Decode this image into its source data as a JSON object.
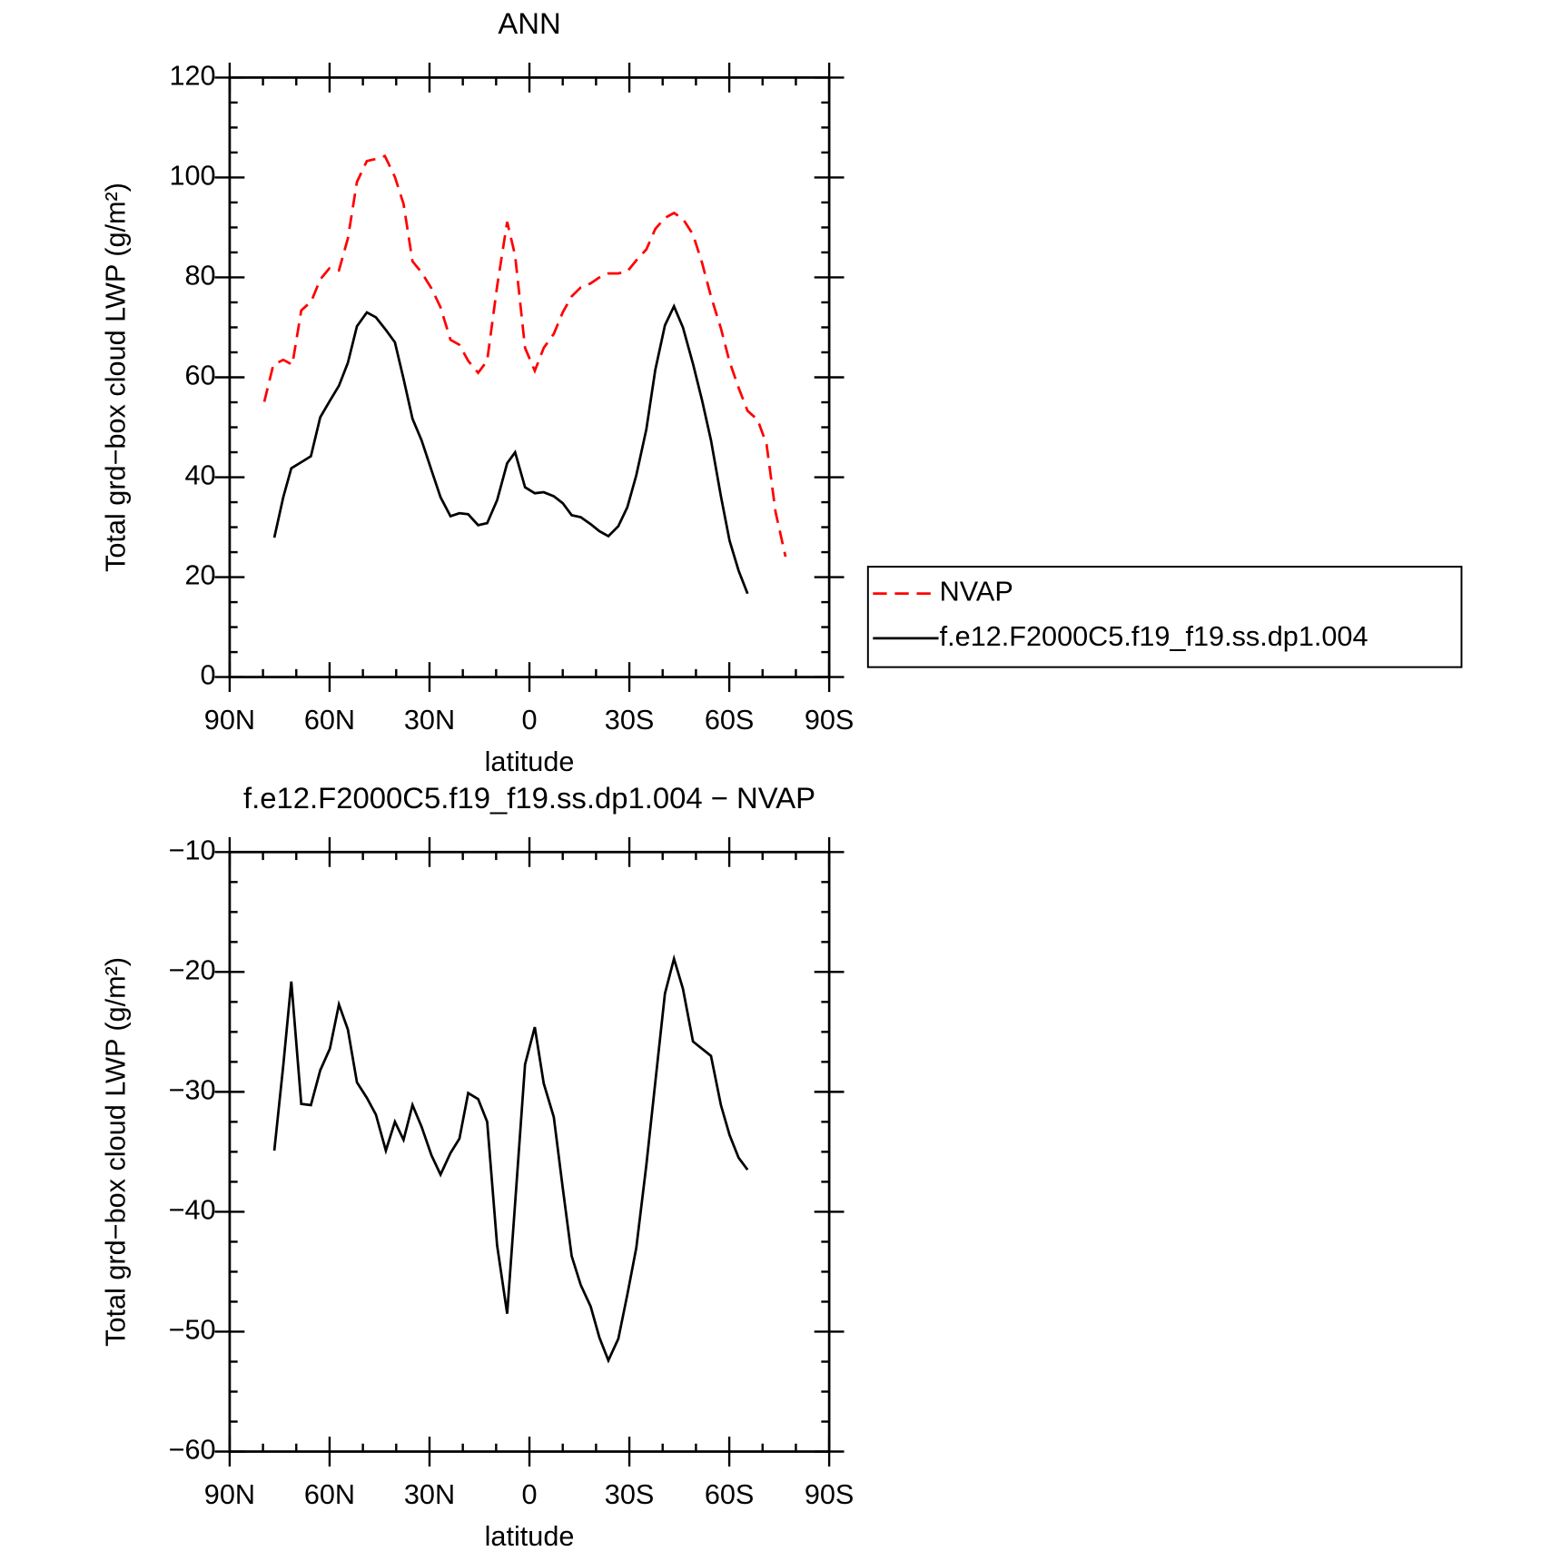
{
  "chart_data": [
    {
      "type": "line",
      "title": "ANN",
      "xlabel": "latitude",
      "ylabel": "Total grd−box cloud LWP (g/m²)",
      "xlim": [
        90,
        -90
      ],
      "xticks": [
        {
          "value": 90,
          "label": "90N"
        },
        {
          "value": 60,
          "label": "60N"
        },
        {
          "value": 30,
          "label": "30N"
        },
        0,
        {
          "value": -30,
          "label": "30S"
        },
        {
          "value": -60,
          "label": "60S"
        },
        {
          "value": -90,
          "label": "90S"
        }
      ],
      "ylim": [
        0,
        120
      ],
      "yticks": [
        0,
        20,
        40,
        60,
        80,
        100,
        120
      ],
      "legend": "right",
      "series": [
        {
          "name": "NVAP",
          "color": "#ff0000",
          "linestyle": "dashed",
          "x": [
            79.6,
            76.9,
            73.9,
            71.2,
            68.5,
            65.5,
            62.8,
            60.1,
            57.2,
            54.5,
            51.8,
            48.8,
            46.1,
            43.4,
            40.4,
            37.8,
            35.1,
            32.4,
            29.4,
            26.7,
            23.7,
            21.0,
            18.4,
            15.4,
            12.7,
            9.7,
            6.7,
            4.3,
            1.3,
            -1.6,
            -4.3,
            -7.3,
            -10.0,
            -12.7,
            -15.4,
            -18.4,
            -21.0,
            -23.7,
            -26.7,
            -29.4,
            -32.1,
            -35.1,
            -37.8,
            -40.7,
            -43.4,
            -46.1,
            -49.1,
            -51.8,
            -54.5,
            -57.5,
            -60.1,
            -62.8,
            -65.5,
            -68.5,
            -71.2,
            -73.9,
            -76.9
          ],
          "values": [
            55.1,
            62.5,
            63.5,
            62.5,
            73.4,
            75.2,
            79.6,
            81.8,
            81.4,
            87.8,
            99.1,
            103.3,
            103.7,
            104.3,
            100.1,
            94.7,
            83.2,
            81.0,
            77.8,
            74.0,
            67.5,
            66.5,
            63.3,
            60.9,
            63.3,
            78.2,
            91.1,
            84.4,
            65.9,
            61.3,
            65.9,
            68.7,
            73.0,
            76.2,
            78.0,
            78.8,
            80.0,
            80.8,
            80.8,
            81.2,
            83.4,
            85.6,
            89.7,
            91.9,
            92.9,
            91.7,
            88.6,
            83.0,
            76.2,
            69.8,
            63.1,
            57.9,
            53.3,
            51.5,
            46.6,
            33.0,
            24.1
          ]
        },
        {
          "name": "f.e12.F2000C5.f19_f19.ss.dp1.004",
          "color": "#000000",
          "linestyle": "solid",
          "x": [
            76.6,
            73.9,
            71.5,
            68.5,
            65.6,
            62.8,
            59.9,
            57.2,
            54.5,
            51.8,
            48.8,
            46.1,
            43.1,
            40.4,
            37.8,
            35.1,
            32.4,
            29.4,
            26.7,
            23.7,
            21.0,
            18.4,
            15.4,
            12.7,
            9.7,
            6.7,
            4.3,
            1.3,
            -1.6,
            -4.3,
            -7.3,
            -10.0,
            -12.7,
            -15.4,
            -18.4,
            -21.0,
            -23.7,
            -26.7,
            -29.4,
            -32.1,
            -35.1,
            -37.8,
            -40.7,
            -43.4,
            -46.1,
            -49.1,
            -51.8,
            -54.5,
            -57.5,
            -60.1,
            -62.8,
            -65.5
          ],
          "values": [
            27.9,
            36.0,
            41.8,
            43.0,
            44.2,
            52.0,
            55.3,
            58.3,
            62.9,
            70.2,
            73.0,
            72.0,
            69.5,
            67.0,
            59.7,
            51.7,
            47.4,
            41.4,
            36.0,
            32.2,
            32.8,
            32.6,
            30.4,
            30.8,
            35.4,
            42.8,
            45.0,
            38.0,
            36.8,
            37.0,
            36.2,
            34.8,
            32.4,
            32.0,
            30.6,
            29.2,
            28.2,
            30.2,
            34.0,
            40.4,
            49.6,
            61.5,
            70.4,
            74.2,
            70.0,
            62.7,
            55.5,
            47.4,
            36.2,
            27.3,
            21.3,
            16.7
          ]
        }
      ]
    },
    {
      "type": "line",
      "title": "f.e12.F2000C5.f19_f19.ss.dp1.004 − NVAP",
      "xlabel": "latitude",
      "ylabel": "Total grd−box cloud LWP (g/m²)",
      "xlim": [
        90,
        -90
      ],
      "xticks": [
        {
          "value": 90,
          "label": "90N"
        },
        {
          "value": 60,
          "label": "60N"
        },
        {
          "value": 30,
          "label": "30N"
        },
        0,
        {
          "value": -30,
          "label": "30S"
        },
        {
          "value": -60,
          "label": "60S"
        },
        {
          "value": -90,
          "label": "90S"
        }
      ],
      "ylim": [
        -60,
        -10
      ],
      "yticks": [
        {
          "value": -60,
          "label": "−60"
        },
        {
          "value": -50,
          "label": "−50"
        },
        {
          "value": -40,
          "label": "−40"
        },
        {
          "value": -30,
          "label": "−30"
        },
        {
          "value": -20,
          "label": "−20"
        },
        {
          "value": -10,
          "label": "−10"
        }
      ],
      "series": [
        {
          "color": "#000000",
          "linestyle": "solid",
          "x": [
            76.6,
            73.9,
            71.5,
            68.5,
            65.6,
            62.8,
            59.9,
            57.2,
            54.5,
            51.8,
            48.8,
            46.1,
            43.1,
            40.4,
            37.8,
            35.1,
            32.4,
            29.4,
            26.7,
            23.7,
            21.0,
            18.4,
            15.4,
            12.7,
            9.7,
            6.7,
            4.3,
            1.3,
            -1.6,
            -4.3,
            -7.3,
            -10.0,
            -12.7,
            -15.4,
            -18.4,
            -21.0,
            -23.7,
            -26.7,
            -29.4,
            -32.1,
            -35.1,
            -37.8,
            -40.7,
            -43.4,
            -46.1,
            -49.1,
            -51.8,
            -54.5,
            -57.5,
            -60.1,
            -62.8,
            -65.5
          ],
          "values": [
            -34.9,
            -27.8,
            -20.8,
            -31.0,
            -31.1,
            -28.2,
            -26.4,
            -22.7,
            -24.8,
            -29.2,
            -30.5,
            -31.9,
            -34.9,
            -32.5,
            -34.0,
            -31.1,
            -32.9,
            -35.3,
            -36.9,
            -35.1,
            -33.9,
            -30.1,
            -30.6,
            -32.5,
            -42.8,
            -48.5,
            -39.3,
            -27.7,
            -24.6,
            -29.3,
            -32.1,
            -38.0,
            -43.7,
            -46.1,
            -47.9,
            -50.5,
            -52.4,
            -50.6,
            -46.9,
            -43.0,
            -36.1,
            -29.2,
            -21.8,
            -18.9,
            -21.4,
            -25.8,
            -26.4,
            -27.0,
            -31.1,
            -33.6,
            -35.5,
            -36.5
          ]
        }
      ]
    }
  ]
}
